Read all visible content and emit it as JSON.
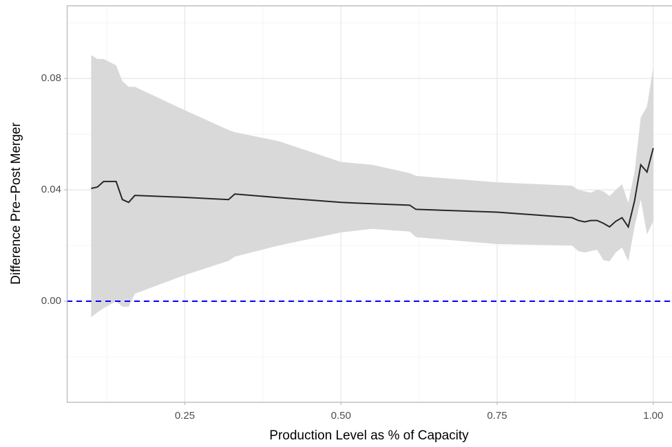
{
  "chart_data": {
    "type": "line",
    "x_label": "Production Level as % of Capacity",
    "y_label": "Difference Pre−Post Merger",
    "x": [
      0.1,
      0.11,
      0.12,
      0.14,
      0.15,
      0.16,
      0.17,
      0.25,
      0.32,
      0.33,
      0.4,
      0.5,
      0.55,
      0.61,
      0.62,
      0.75,
      0.87,
      0.88,
      0.89,
      0.9,
      0.91,
      0.92,
      0.93,
      0.94,
      0.95,
      0.96,
      0.97,
      0.98,
      0.99,
      1.0
    ],
    "series": [
      {
        "color": "#262626",
        "values": [
          0.0405,
          0.041,
          0.043,
          0.043,
          0.0365,
          0.0355,
          0.038,
          0.0373,
          0.0365,
          0.0385,
          0.0372,
          0.0355,
          0.035,
          0.0345,
          0.033,
          0.032,
          0.03,
          0.029,
          0.0285,
          0.029,
          0.029,
          0.028,
          0.0267,
          0.0287,
          0.03,
          0.0267,
          0.036,
          0.049,
          0.0464,
          0.055
        ]
      }
    ],
    "band": {
      "color": "#d9d9d9",
      "upper": [
        0.0884,
        0.087,
        0.087,
        0.0847,
        0.079,
        0.077,
        0.077,
        0.0686,
        0.0615,
        0.0607,
        0.0575,
        0.05,
        0.049,
        0.046,
        0.045,
        0.0427,
        0.0415,
        0.04,
        0.0395,
        0.039,
        0.04,
        0.0395,
        0.0378,
        0.04,
        0.042,
        0.0353,
        0.0464,
        0.066,
        0.07,
        0.084
      ],
      "lower": [
        -0.0057,
        -0.004,
        -0.0025,
        0.0,
        -0.002,
        -0.002,
        0.0027,
        0.0094,
        0.0145,
        0.016,
        0.02,
        0.0247,
        0.026,
        0.025,
        0.023,
        0.0205,
        0.02,
        0.018,
        0.0175,
        0.018,
        0.0185,
        0.0148,
        0.0143,
        0.0175,
        0.0193,
        0.0143,
        0.0267,
        0.0365,
        0.024,
        0.0287
      ]
    },
    "hline": {
      "value": 0,
      "color": "#0000ff",
      "dashed": true
    },
    "xlim": [
      0.061,
      1.03
    ],
    "ylim": [
      -0.0363,
      0.1062
    ],
    "xticks": [
      0.25,
      {
        "value": 0.5,
        "label": "0.50"
      },
      0.75,
      {
        "value": 1,
        "label": "1.00"
      }
    ],
    "yticks": [
      {
        "value": 0,
        "label": "0.00"
      },
      0.04,
      0.08
    ],
    "x_minor_ticks": [
      0.125,
      0.375,
      0.625,
      0.875
    ],
    "y_minor_ticks": [
      -0.02,
      0.02,
      0.06,
      0.1
    ],
    "grid": true
  }
}
